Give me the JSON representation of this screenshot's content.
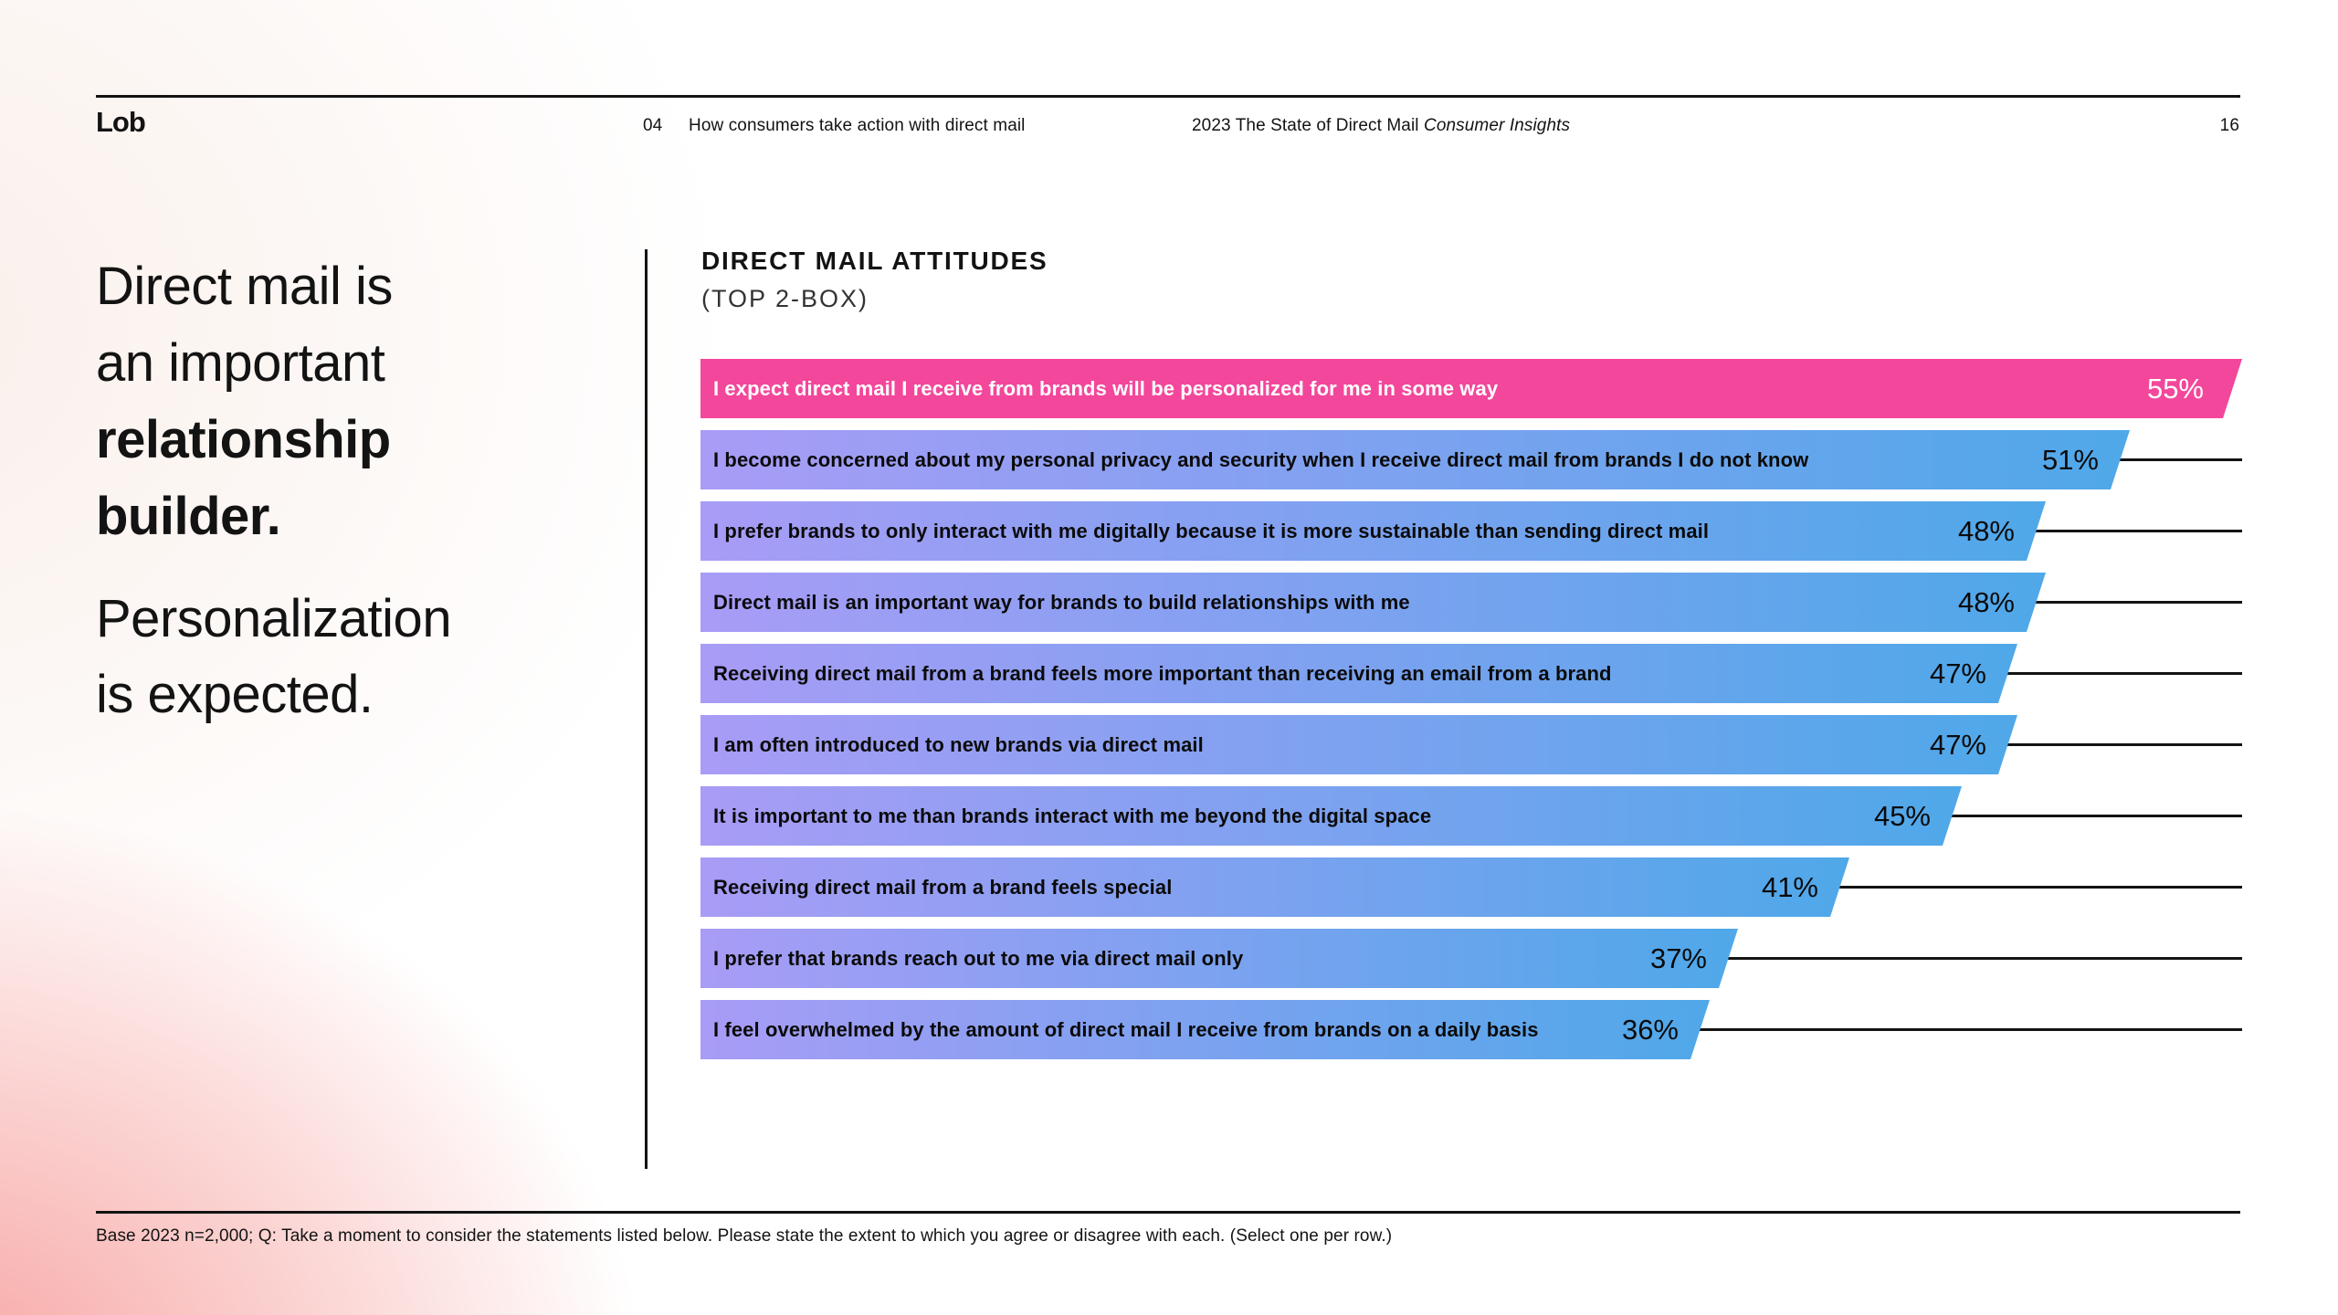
{
  "header": {
    "logo": "Lob",
    "chapter_number": "04",
    "chapter_title": "How consumers take action with direct mail",
    "report_title": "2023 The State of Direct Mail ",
    "report_title_italic": "Consumer Insights",
    "page_number": "16"
  },
  "headline": {
    "line1": "Direct mail is",
    "line2": "an important",
    "line3_bold": "relationship",
    "line4_bold": "builder.",
    "sub_line1": "Personalization",
    "sub_line2": "is expected."
  },
  "chart": {
    "title": "DIRECT MAIL ATTITUDES",
    "subtitle": "(TOP 2-BOX)"
  },
  "chart_data": {
    "type": "bar",
    "orientation": "horizontal",
    "title": "DIRECT MAIL ATTITUDES (TOP 2-BOX)",
    "unit": "%",
    "xlim": [
      0,
      55
    ],
    "grid": false,
    "legend": "none",
    "highlight_color": "#F3479B",
    "bar_gradient_left": "#A89CF6",
    "bar_gradient_right": "#4FA8E9",
    "rows": [
      {
        "label": "I expect direct mail I receive from brands will be personalized for me in some way",
        "value": 55,
        "highlight": true
      },
      {
        "label": "I become concerned about my personal privacy and security when I receive direct mail from brands I do not know",
        "value": 51,
        "highlight": false
      },
      {
        "label": "I prefer brands to only interact with me digitally because it is more sustainable than sending direct mail",
        "value": 48,
        "highlight": false
      },
      {
        "label": "Direct mail is an important way for brands to build relationships with me",
        "value": 48,
        "highlight": false
      },
      {
        "label": "Receiving direct mail from a brand feels more important than receiving an email from a brand",
        "value": 47,
        "highlight": false
      },
      {
        "label": "I am often introduced to new brands via direct mail",
        "value": 47,
        "highlight": false
      },
      {
        "label": "It is important to me than brands interact with me beyond the digital space",
        "value": 45,
        "highlight": false
      },
      {
        "label": "Receiving direct mail from a brand feels special",
        "value": 41,
        "highlight": false
      },
      {
        "label": "I prefer that brands reach out to me via direct mail only",
        "value": 37,
        "highlight": false
      },
      {
        "label": "I feel overwhelmed by the amount of direct mail I receive from brands on a daily basis",
        "value": 36,
        "highlight": false
      }
    ]
  },
  "footer": {
    "note": "Base 2023 n=2,000; Q: Take a moment to consider the statements listed below. Please state the extent to which you agree or disagree with each. (Select one per row.)"
  }
}
